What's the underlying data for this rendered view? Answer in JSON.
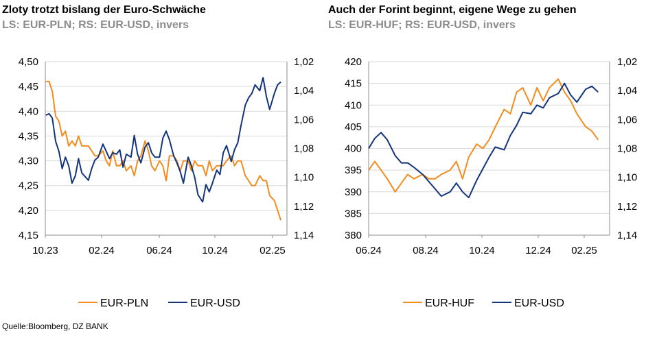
{
  "source": "Quelle:Bloomberg, DZ BANK",
  "colors": {
    "orange": "#f28c1e",
    "blue": "#12347a",
    "grid": "#d9d9d9",
    "axis": "#8c8c8c"
  },
  "chart_data": [
    {
      "type": "line",
      "title": "Zloty trotzt bislang der Euro-Schwäche",
      "subtitle": "LS: EUR-PLN; RS: EUR-USD, invers",
      "x_ticks": [
        "10.23",
        "02.24",
        "06.24",
        "10.24",
        "02.25"
      ],
      "xlim": [
        "2023-10-01",
        "2025-02-28"
      ],
      "left_axis": {
        "ticks": [
          "4,50",
          "4,45",
          "4,40",
          "4,35",
          "4,30",
          "4,25",
          "4,20",
          "4,15"
        ],
        "range": [
          4.15,
          4.5
        ]
      },
      "right_axis": {
        "ticks": [
          "1,02",
          "1,04",
          "1,06",
          "1,08",
          "1,10",
          "1,12",
          "1,14"
        ],
        "range": [
          1.02,
          1.14
        ],
        "inverted": true
      },
      "grid": "horizontal",
      "legend": "bottom",
      "series": [
        {
          "name": "EUR-PLN",
          "axis": "left",
          "color": "#f28c1e",
          "x": [
            "2023-10-02",
            "2023-10-09",
            "2023-10-16",
            "2023-10-23",
            "2023-10-30",
            "2023-11-06",
            "2023-11-13",
            "2023-11-20",
            "2023-11-27",
            "2023-12-04",
            "2023-12-11",
            "2023-12-18",
            "2024-01-01",
            "2024-01-08",
            "2024-01-15",
            "2024-01-22",
            "2024-02-01",
            "2024-02-08",
            "2024-02-15",
            "2024-02-22",
            "2024-03-01",
            "2024-03-08",
            "2024-03-15",
            "2024-03-22",
            "2024-04-01",
            "2024-04-08",
            "2024-04-15",
            "2024-04-22",
            "2024-05-01",
            "2024-05-08",
            "2024-05-15",
            "2024-05-22",
            "2024-06-01",
            "2024-06-08",
            "2024-06-15",
            "2024-06-22",
            "2024-07-01",
            "2024-07-08",
            "2024-07-15",
            "2024-07-22",
            "2024-08-01",
            "2024-08-08",
            "2024-08-15",
            "2024-08-22",
            "2024-09-01",
            "2024-09-08",
            "2024-09-15",
            "2024-09-22",
            "2024-10-01",
            "2024-10-08",
            "2024-10-15",
            "2024-10-22",
            "2024-11-01",
            "2024-11-08",
            "2024-11-15",
            "2024-11-22",
            "2024-12-01",
            "2024-12-08",
            "2024-12-15",
            "2024-12-22",
            "2025-01-01",
            "2025-01-08",
            "2025-01-15",
            "2025-01-22",
            "2025-02-01",
            "2025-02-08",
            "2025-02-15"
          ],
          "y": [
            4.46,
            4.46,
            4.44,
            4.39,
            4.38,
            4.35,
            4.36,
            4.33,
            4.34,
            4.33,
            4.35,
            4.33,
            4.33,
            4.32,
            4.31,
            4.31,
            4.32,
            4.3,
            4.29,
            4.32,
            4.29,
            4.29,
            4.3,
            4.28,
            4.29,
            4.27,
            4.3,
            4.31,
            4.34,
            4.32,
            4.29,
            4.28,
            4.3,
            4.29,
            4.26,
            4.31,
            4.31,
            4.3,
            4.28,
            4.3,
            4.3,
            4.28,
            4.3,
            4.29,
            4.29,
            4.27,
            4.3,
            4.28,
            4.29,
            4.29,
            4.29,
            4.3,
            4.31,
            4.29,
            4.3,
            4.3,
            4.27,
            4.26,
            4.25,
            4.25,
            4.27,
            4.26,
            4.26,
            4.23,
            4.22,
            4.2,
            4.18
          ]
        },
        {
          "name": "EUR-USD",
          "axis": "right",
          "color": "#12347a",
          "x": [
            "2023-10-02",
            "2023-10-09",
            "2023-10-16",
            "2023-10-23",
            "2023-10-30",
            "2023-11-06",
            "2023-11-13",
            "2023-11-20",
            "2023-11-27",
            "2023-12-04",
            "2023-12-11",
            "2023-12-18",
            "2024-01-01",
            "2024-01-08",
            "2024-01-15",
            "2024-01-22",
            "2024-02-01",
            "2024-02-08",
            "2024-02-15",
            "2024-02-22",
            "2024-03-01",
            "2024-03-08",
            "2024-03-15",
            "2024-03-22",
            "2024-04-01",
            "2024-04-08",
            "2024-04-15",
            "2024-04-22",
            "2024-05-01",
            "2024-05-08",
            "2024-05-15",
            "2024-05-22",
            "2024-06-01",
            "2024-06-08",
            "2024-06-15",
            "2024-06-22",
            "2024-07-01",
            "2024-07-08",
            "2024-07-15",
            "2024-07-22",
            "2024-08-01",
            "2024-08-08",
            "2024-08-15",
            "2024-08-22",
            "2024-09-01",
            "2024-09-08",
            "2024-09-15",
            "2024-09-22",
            "2024-10-01",
            "2024-10-08",
            "2024-10-15",
            "2024-10-22",
            "2024-11-01",
            "2024-11-08",
            "2024-11-15",
            "2024-11-22",
            "2024-12-01",
            "2024-12-08",
            "2024-12-15",
            "2024-12-22",
            "2025-01-01",
            "2025-01-08",
            "2025-01-15",
            "2025-01-22",
            "2025-02-01",
            "2025-02-08",
            "2025-02-15"
          ],
          "y": [
            1.057,
            1.056,
            1.059,
            1.075,
            1.082,
            1.094,
            1.086,
            1.092,
            1.104,
            1.099,
            1.087,
            1.097,
            1.102,
            1.094,
            1.088,
            1.086,
            1.077,
            1.082,
            1.087,
            1.083,
            1.084,
            1.081,
            1.093,
            1.084,
            1.086,
            1.071,
            1.084,
            1.09,
            1.079,
            1.076,
            1.083,
            1.086,
            1.086,
            1.073,
            1.068,
            1.074,
            1.085,
            1.09,
            1.096,
            1.104,
            1.086,
            1.092,
            1.1,
            1.112,
            1.117,
            1.105,
            1.11,
            1.104,
            1.095,
            1.098,
            1.083,
            1.078,
            1.089,
            1.081,
            1.076,
            1.064,
            1.05,
            1.045,
            1.042,
            1.036,
            1.04,
            1.031,
            1.044,
            1.053,
            1.042,
            1.036,
            1.034
          ]
        }
      ]
    },
    {
      "type": "line",
      "title": "Auch der Forint beginnt, eigene Wege zu gehen",
      "subtitle": "LS: EUR-HUF; RS: EUR-USD, invers",
      "x_ticks": [
        "06.24",
        "08.24",
        "10.24",
        "12.24",
        "02.25"
      ],
      "xlim": [
        "2024-06-01",
        "2025-02-28"
      ],
      "left_axis": {
        "ticks": [
          "420",
          "415",
          "410",
          "405",
          "400",
          "395",
          "390",
          "385",
          "380"
        ],
        "range": [
          380,
          420
        ]
      },
      "right_axis": {
        "ticks": [
          "1,02",
          "1,04",
          "1,06",
          "1,08",
          "1,10",
          "1,12",
          "1,14"
        ],
        "range": [
          1.02,
          1.14
        ],
        "inverted": true
      },
      "grid": "horizontal",
      "legend": "bottom",
      "series": [
        {
          "name": "EUR-HUF",
          "axis": "left",
          "color": "#f28c1e",
          "x": [
            "2024-06-01",
            "2024-06-08",
            "2024-06-15",
            "2024-06-22",
            "2024-07-01",
            "2024-07-08",
            "2024-07-15",
            "2024-07-22",
            "2024-08-01",
            "2024-08-08",
            "2024-08-15",
            "2024-08-22",
            "2024-09-01",
            "2024-09-08",
            "2024-09-15",
            "2024-09-22",
            "2024-10-01",
            "2024-10-08",
            "2024-10-15",
            "2024-10-22",
            "2024-11-01",
            "2024-11-08",
            "2024-11-15",
            "2024-11-22",
            "2024-12-01",
            "2024-12-08",
            "2024-12-15",
            "2024-12-22",
            "2025-01-01",
            "2025-01-08",
            "2025-01-15",
            "2025-01-22",
            "2025-02-01",
            "2025-02-08",
            "2025-02-15"
          ],
          "y": [
            395,
            397,
            395,
            393,
            390,
            392,
            394,
            393,
            394,
            393,
            393,
            394,
            395,
            397,
            393,
            398,
            401,
            400,
            402,
            405,
            409,
            408,
            413,
            414,
            410,
            414,
            411,
            414,
            416,
            413,
            411,
            408,
            405,
            404,
            402
          ]
        },
        {
          "name": "EUR-USD",
          "axis": "right",
          "color": "#12347a",
          "x": [
            "2024-06-01",
            "2024-06-08",
            "2024-06-15",
            "2024-06-22",
            "2024-07-01",
            "2024-07-08",
            "2024-07-15",
            "2024-07-22",
            "2024-08-01",
            "2024-08-08",
            "2024-08-15",
            "2024-08-22",
            "2024-09-01",
            "2024-09-08",
            "2024-09-15",
            "2024-09-22",
            "2024-10-01",
            "2024-10-08",
            "2024-10-15",
            "2024-10-22",
            "2024-11-01",
            "2024-11-08",
            "2024-11-15",
            "2024-11-22",
            "2024-12-01",
            "2024-12-08",
            "2024-12-15",
            "2024-12-22",
            "2025-01-01",
            "2025-01-08",
            "2025-01-15",
            "2025-01-22",
            "2025-02-01",
            "2025-02-08",
            "2025-02-15"
          ],
          "y": [
            1.08,
            1.073,
            1.069,
            1.074,
            1.085,
            1.09,
            1.09,
            1.093,
            1.098,
            1.103,
            1.108,
            1.113,
            1.11,
            1.104,
            1.11,
            1.114,
            1.102,
            1.094,
            1.086,
            1.079,
            1.081,
            1.071,
            1.064,
            1.055,
            1.056,
            1.05,
            1.052,
            1.045,
            1.042,
            1.035,
            1.043,
            1.048,
            1.039,
            1.037,
            1.041
          ]
        }
      ]
    }
  ]
}
